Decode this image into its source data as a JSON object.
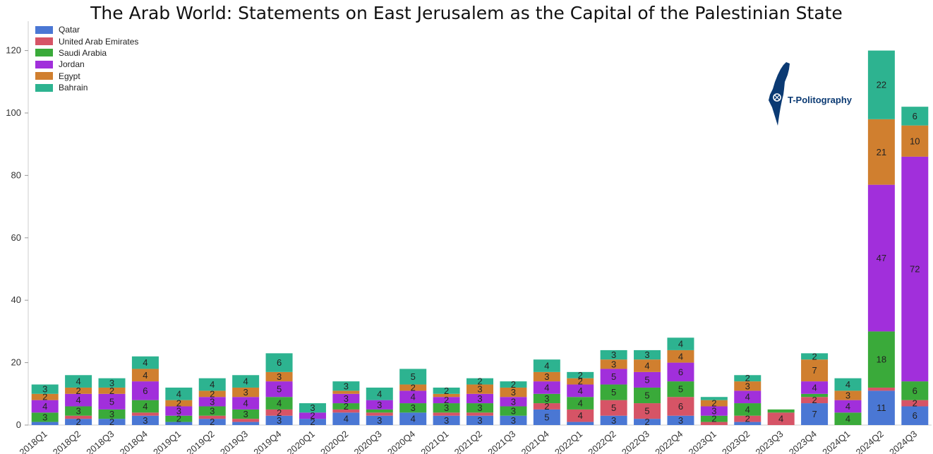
{
  "chart_data": {
    "type": "bar",
    "stacked": true,
    "title": "The Arab World: Statements on East Jerusalem as the Capital of the Palestinian State",
    "xlabel": "",
    "ylabel": "",
    "ylim": [
      0,
      130
    ],
    "yticks": [
      0,
      20,
      40,
      60,
      80,
      100,
      120
    ],
    "grid": false,
    "legend_position": "top-left",
    "categories": [
      "2018Q1",
      "2018Q2",
      "2018Q3",
      "2018Q4",
      "2019Q1",
      "2019Q2",
      "2019Q3",
      "2019Q4",
      "2020Q1",
      "2020Q2",
      "2020Q3",
      "2020Q4",
      "2021Q1",
      "2021Q2",
      "2021Q3",
      "2021Q4",
      "2022Q1",
      "2022Q2",
      "2022Q3",
      "2022Q4",
      "2023Q1",
      "2023Q2",
      "2023Q3",
      "2023Q4",
      "2024Q1",
      "2024Q2",
      "2024Q3"
    ],
    "series": [
      {
        "name": "Qatar",
        "color": "#4a77d4",
        "values": [
          1,
          2,
          2,
          3,
          1,
          2,
          1,
          3,
          2,
          4,
          3,
          4,
          3,
          3,
          3,
          5,
          1,
          3,
          2,
          3,
          0,
          1,
          0,
          7,
          0,
          11,
          6
        ]
      },
      {
        "name": "United Arab Emirates",
        "color": "#d65466",
        "values": [
          0,
          1,
          0,
          1,
          0,
          1,
          1,
          2,
          0,
          1,
          1,
          0,
          1,
          1,
          0,
          2,
          4,
          5,
          5,
          6,
          1,
          2,
          4,
          2,
          0,
          1,
          2
        ]
      },
      {
        "name": "Saudi Arabia",
        "color": "#3aaa3a",
        "values": [
          3,
          3,
          3,
          4,
          2,
          3,
          3,
          4,
          0,
          2,
          1,
          3,
          3,
          3,
          3,
          3,
          4,
          5,
          5,
          5,
          2,
          4,
          1,
          1,
          4,
          18,
          6
        ]
      },
      {
        "name": "Jordan",
        "color": "#a12fdb",
        "values": [
          4,
          4,
          5,
          6,
          3,
          3,
          4,
          5,
          2,
          3,
          3,
          4,
          2,
          3,
          3,
          4,
          4,
          5,
          5,
          6,
          3,
          4,
          0,
          4,
          4,
          47,
          72
        ]
      },
      {
        "name": "Egypt",
        "color": "#d07f2f",
        "values": [
          2,
          2,
          2,
          4,
          2,
          2,
          3,
          3,
          0,
          1,
          0,
          2,
          1,
          3,
          3,
          3,
          2,
          3,
          4,
          4,
          2,
          3,
          0,
          7,
          3,
          21,
          10
        ]
      },
      {
        "name": "Bahrain",
        "color": "#2db390",
        "values": [
          3,
          4,
          3,
          4,
          4,
          4,
          4,
          6,
          3,
          3,
          4,
          5,
          2,
          2,
          2,
          4,
          2,
          3,
          3,
          4,
          1,
          2,
          0,
          2,
          4,
          22,
          6
        ]
      }
    ],
    "data_labels_shown_from": 2
  },
  "logo": {
    "text": "T-Politography"
  }
}
